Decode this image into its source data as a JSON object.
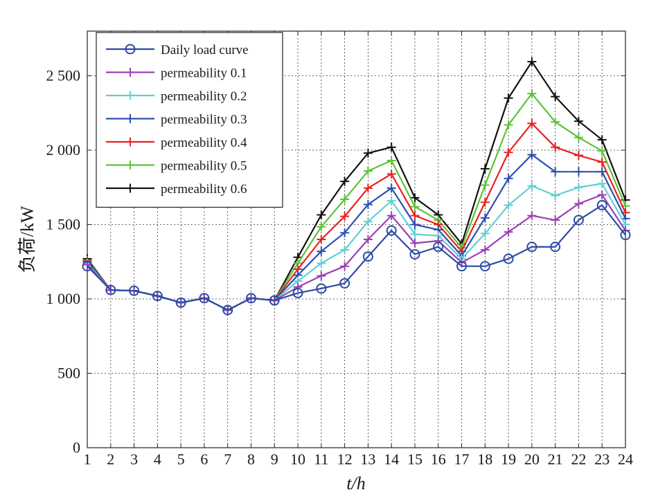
{
  "chart_data": {
    "type": "line",
    "xlabel": "t/h",
    "ylabel": "负荷/kW",
    "x": [
      1,
      2,
      3,
      4,
      5,
      6,
      7,
      8,
      9,
      10,
      11,
      12,
      13,
      14,
      15,
      16,
      17,
      18,
      19,
      20,
      21,
      22,
      23,
      24
    ],
    "xlim": [
      1,
      24
    ],
    "ylim": [
      0,
      2800
    ],
    "x_ticks": [
      "1",
      "2",
      "3",
      "4",
      "5",
      "6",
      "7",
      "8",
      "9",
      "10",
      "11",
      "12",
      "13",
      "14",
      "15",
      "16",
      "17",
      "18",
      "19",
      "20",
      "21",
      "22",
      "23",
      "24"
    ],
    "y_ticks": [
      {
        "value": 0,
        "label": "0"
      },
      {
        "value": 500,
        "label": "500"
      },
      {
        "value": 1000,
        "label": "1 000"
      },
      {
        "value": 1500,
        "label": "1 500"
      },
      {
        "value": 2000,
        "label": "2 000"
      },
      {
        "value": 2500,
        "label": "2 500"
      }
    ],
    "grid": true,
    "legend_position": "top-left",
    "series": [
      {
        "name": "Daily load curve",
        "color": "#2b4aa3",
        "marker": "circle",
        "values": [
          1220,
          1060,
          1055,
          1020,
          975,
          1005,
          925,
          1005,
          990,
          1040,
          1070,
          1105,
          1285,
          1460,
          1300,
          1350,
          1220,
          1220,
          1270,
          1350,
          1350,
          1530,
          1630,
          1430
        ]
      },
      {
        "name": "permeability 0.1",
        "color": "#9b3fb5",
        "marker": "plus",
        "values": [
          1230,
          1060,
          1055,
          1020,
          975,
          1005,
          925,
          1005,
          990,
          1080,
          1155,
          1220,
          1400,
          1560,
          1375,
          1390,
          1245,
          1330,
          1450,
          1560,
          1530,
          1640,
          1700,
          1460
        ]
      },
      {
        "name": "permeability 0.2",
        "color": "#5fd0d3",
        "marker": "plus",
        "values": [
          1240,
          1060,
          1055,
          1020,
          975,
          1005,
          925,
          1005,
          990,
          1120,
          1240,
          1330,
          1520,
          1660,
          1435,
          1425,
          1270,
          1440,
          1630,
          1760,
          1695,
          1750,
          1775,
          1500
        ]
      },
      {
        "name": "permeability 0.3",
        "color": "#2a4fb0",
        "marker": "plus",
        "values": [
          1250,
          1060,
          1055,
          1020,
          975,
          1005,
          925,
          1005,
          990,
          1160,
          1320,
          1445,
          1635,
          1745,
          1500,
          1465,
          1290,
          1545,
          1810,
          1970,
          1855,
          1855,
          1855,
          1540
        ]
      },
      {
        "name": "permeability 0.4",
        "color": "#e8221e",
        "marker": "plus",
        "values": [
          1255,
          1060,
          1055,
          1020,
          975,
          1005,
          925,
          1005,
          990,
          1200,
          1400,
          1555,
          1745,
          1840,
          1560,
          1500,
          1320,
          1650,
          1985,
          2180,
          2020,
          1965,
          1920,
          1580
        ]
      },
      {
        "name": "permeability 0.5",
        "color": "#5cc336",
        "marker": "plus",
        "values": [
          1260,
          1060,
          1055,
          1020,
          975,
          1005,
          925,
          1005,
          990,
          1240,
          1485,
          1670,
          1860,
          1930,
          1620,
          1530,
          1345,
          1765,
          2170,
          2380,
          2190,
          2085,
          1995,
          1625
        ]
      },
      {
        "name": "permeability 0.6",
        "color": "#111111",
        "marker": "plus",
        "values": [
          1270,
          1060,
          1055,
          1020,
          975,
          1005,
          925,
          1005,
          990,
          1280,
          1565,
          1790,
          1980,
          2020,
          1680,
          1565,
          1370,
          1875,
          2350,
          2595,
          2360,
          2195,
          2070,
          1665
        ]
      }
    ]
  }
}
